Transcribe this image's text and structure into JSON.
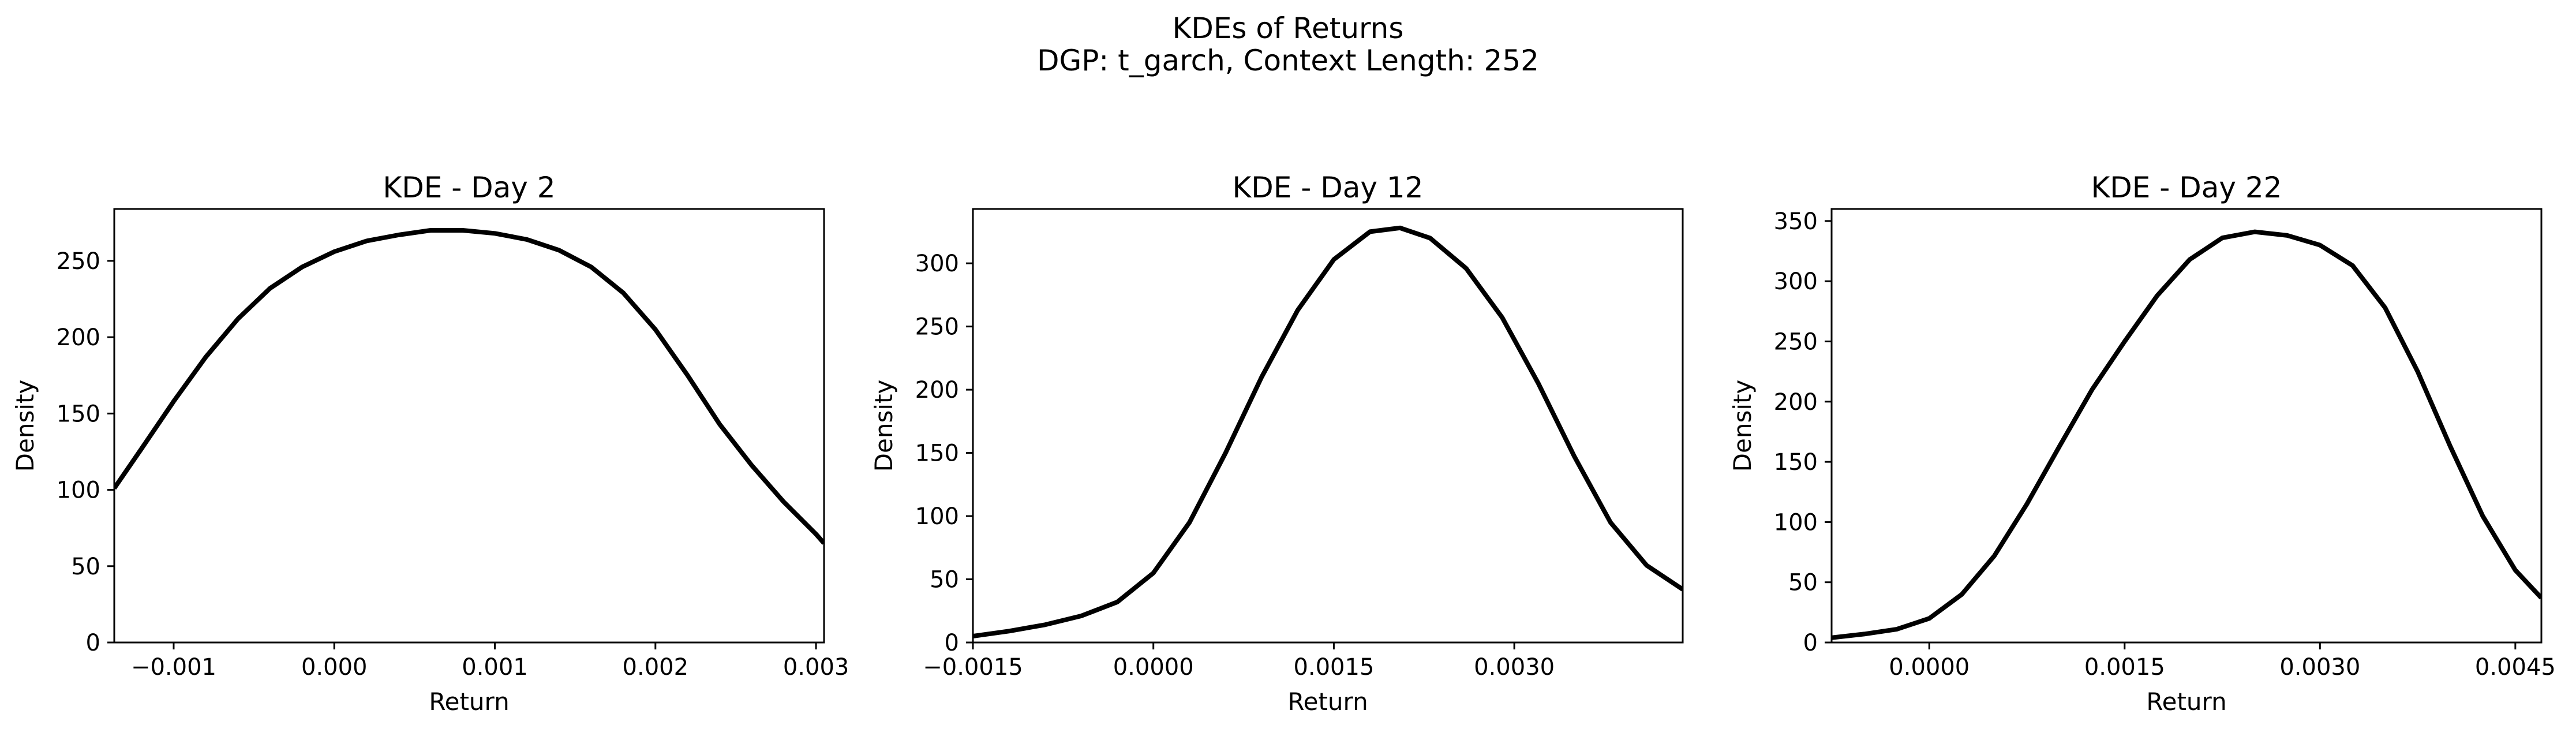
{
  "suptitle": [
    "KDEs of Returns",
    "DGP: t_garch, Context Length: 252"
  ],
  "chart_data": [
    {
      "type": "line",
      "title": "KDE - Day 2",
      "xlabel": "Return",
      "ylabel": "Density",
      "xlim": [
        -0.00137,
        0.00305
      ],
      "ylim": [
        0,
        284
      ],
      "xticks": [
        -0.001,
        0.0,
        0.001,
        0.002,
        0.003
      ],
      "xtick_labels": [
        "−0.001",
        "0.000",
        "0.001",
        "0.002",
        "0.003"
      ],
      "yticks": [
        0,
        50,
        100,
        150,
        200,
        250
      ],
      "ytick_labels": [
        "0",
        "50",
        "100",
        "150",
        "200",
        "250"
      ],
      "series": [
        {
          "color": "#000000",
          "x": [
            -0.00137,
            -0.0012,
            -0.001,
            -0.0008,
            -0.0006,
            -0.0004,
            -0.0002,
            0.0,
            0.0002,
            0.0004,
            0.0006,
            0.0008,
            0.001,
            0.0012,
            0.0014,
            0.0016,
            0.0018,
            0.002,
            0.0022,
            0.0024,
            0.0026,
            0.0028,
            0.003,
            0.00305
          ],
          "y": [
            101,
            127,
            158,
            187,
            212,
            232,
            246,
            256,
            263,
            267,
            270,
            270,
            268,
            264,
            257,
            246,
            229,
            205,
            175,
            143,
            116,
            92,
            71,
            65
          ]
        }
      ]
    },
    {
      "type": "line",
      "title": "KDE - Day 12",
      "xlabel": "Return",
      "ylabel": "Density",
      "xlim": [
        -0.0015,
        0.0044
      ],
      "ylim": [
        0,
        343
      ],
      "xticks": [
        -0.0015,
        0.0,
        0.0015,
        0.003
      ],
      "xtick_labels": [
        "−0.0015",
        "0.0000",
        "0.0015",
        "0.0030"
      ],
      "yticks": [
        0,
        50,
        100,
        150,
        200,
        250,
        300
      ],
      "ytick_labels": [
        "0",
        "50",
        "100",
        "150",
        "200",
        "250",
        "300"
      ],
      "series": [
        {
          "color": "#000000",
          "x": [
            -0.0015,
            -0.0012,
            -0.0009,
            -0.0006,
            -0.0003,
            0.0,
            0.0003,
            0.0006,
            0.0009,
            0.0012,
            0.0015,
            0.0018,
            0.00205,
            0.0023,
            0.0026,
            0.0029,
            0.0032,
            0.0035,
            0.0038,
            0.0041,
            0.0044
          ],
          "y": [
            5,
            9,
            14,
            21,
            32,
            55,
            95,
            150,
            210,
            263,
            303,
            325,
            328,
            320,
            296,
            257,
            205,
            147,
            95,
            61,
            42
          ]
        }
      ]
    },
    {
      "type": "line",
      "title": "KDE - Day 22",
      "xlabel": "Return",
      "ylabel": "Density",
      "xlim": [
        -0.00075,
        0.0047
      ],
      "ylim": [
        0,
        360
      ],
      "xticks": [
        0.0,
        0.0015,
        0.003,
        0.0045
      ],
      "xtick_labels": [
        "0.0000",
        "0.0015",
        "0.0030",
        "0.0045"
      ],
      "yticks": [
        0,
        50,
        100,
        150,
        200,
        250,
        300,
        350
      ],
      "ytick_labels": [
        "0",
        "50",
        "100",
        "150",
        "200",
        "250",
        "300",
        "350"
      ],
      "series": [
        {
          "color": "#000000",
          "x": [
            -0.00075,
            -0.0005,
            -0.00025,
            0.0,
            0.00025,
            0.0005,
            0.00075,
            0.001,
            0.00125,
            0.0015,
            0.00175,
            0.002,
            0.00225,
            0.0025,
            0.00275,
            0.003,
            0.00325,
            0.0035,
            0.00375,
            0.004,
            0.00425,
            0.0045,
            0.0047
          ],
          "y": [
            4,
            7,
            11,
            20,
            40,
            72,
            115,
            163,
            210,
            250,
            288,
            318,
            336,
            341,
            338,
            330,
            313,
            278,
            225,
            163,
            105,
            60,
            37
          ]
        }
      ]
    }
  ]
}
